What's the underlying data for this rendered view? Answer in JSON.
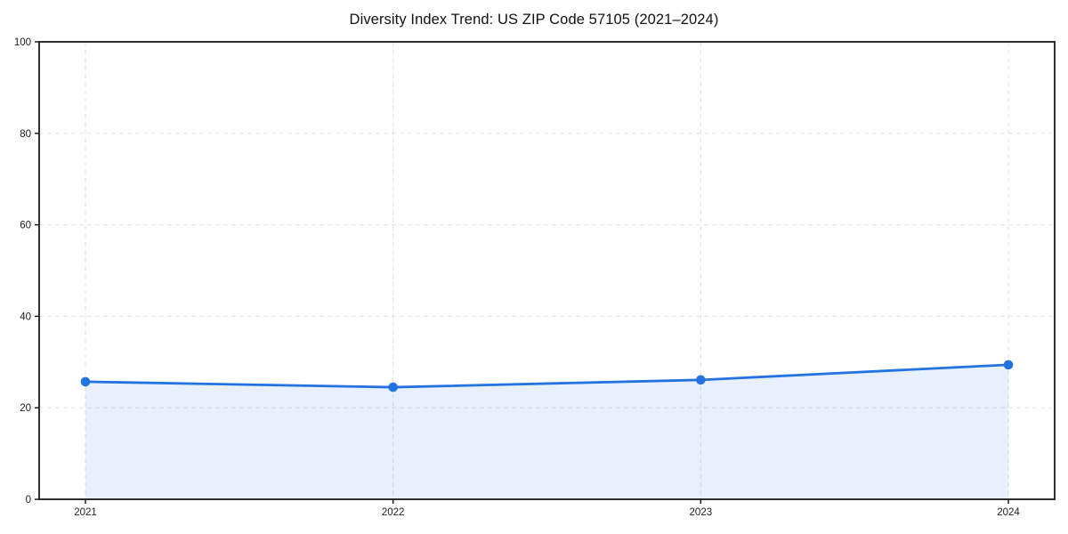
{
  "page": {
    "background": "#ffffff"
  },
  "chart_data": {
    "type": "line",
    "title": "Diversity Index Trend: US ZIP Code 57105 (2021–2024)",
    "x": [
      2021,
      2022,
      2023,
      2024
    ],
    "xtick_labels": [
      "2021",
      "2022",
      "2023",
      "2024"
    ],
    "series": [
      {
        "name": "Diversity Index",
        "values": [
          25.7,
          24.5,
          26.1,
          29.4
        ]
      }
    ],
    "xlabel": "",
    "ylabel": "",
    "xlim": [
      2021,
      2024
    ],
    "ylim": [
      0,
      100
    ],
    "yticks": [
      0,
      20,
      40,
      60,
      80,
      100
    ],
    "grid": true,
    "grid_style": "dashed",
    "legend_position": "none",
    "area_fill_to_zero": true,
    "marker": "circle",
    "colors": {
      "line": "#2273e0",
      "marker": "#2273e0",
      "area": "#2273e0",
      "area_opacity": 0.11,
      "grid": "#e2e2e2",
      "spine": "#1a1a1a",
      "tick_text": "#1d1d1f",
      "title_text": "#111111"
    }
  }
}
